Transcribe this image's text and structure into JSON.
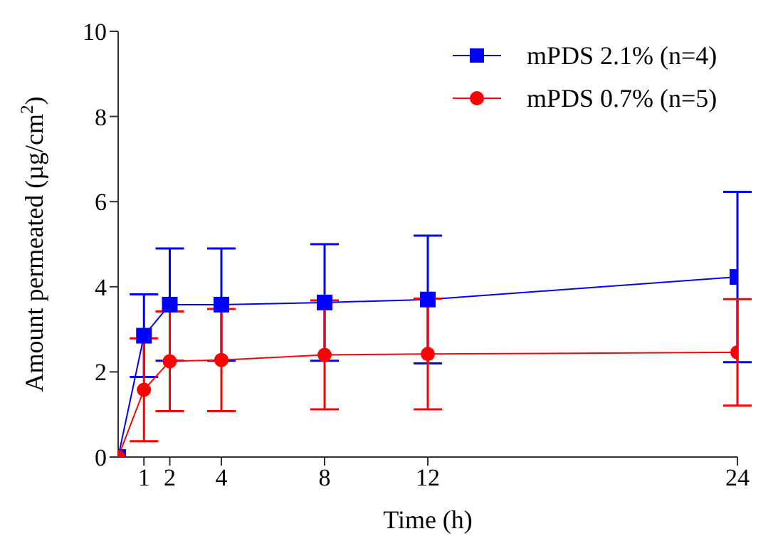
{
  "chart_data": {
    "type": "line",
    "xlabel": "Time (h)",
    "ylabel": "Amount permeated (µg/cm$^{2}$)",
    "x": [
      0,
      1,
      2,
      4,
      8,
      12,
      24
    ],
    "series": [
      {
        "name": "mPDS 2.1% (n=4)",
        "color": "#0000ff",
        "marker": "square",
        "values": [
          0,
          2.85,
          3.58,
          3.58,
          3.63,
          3.7,
          4.23
        ],
        "errors": [
          null,
          0.97,
          1.32,
          1.32,
          1.37,
          1.5,
          2.0
        ]
      },
      {
        "name": "mPDS 0.7% (n=5)",
        "color": "#ff0000",
        "marker": "circle",
        "values": [
          0,
          1.58,
          2.25,
          2.28,
          2.4,
          2.42,
          2.46
        ],
        "errors": [
          null,
          1.21,
          1.17,
          1.2,
          1.28,
          1.3,
          1.25
        ]
      }
    ],
    "xlim": [
      0,
      24
    ],
    "xticks": [
      1,
      2,
      4,
      8,
      12,
      24
    ],
    "ylim": [
      0,
      10
    ],
    "yticks": [
      0,
      2,
      4,
      6,
      8,
      10
    ],
    "grid": false,
    "legend": "top right",
    "line_style": "solid"
  }
}
